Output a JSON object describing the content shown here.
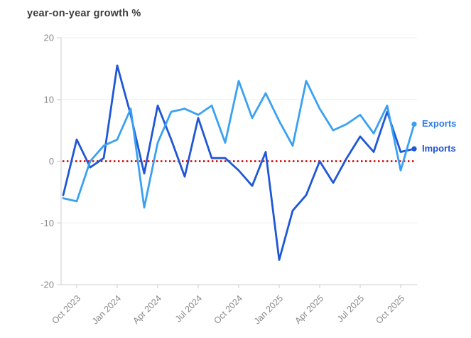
{
  "title": "year-on-year growth %",
  "legend": {
    "exports_label": "Exports",
    "imports_label": "Imports"
  },
  "colors": {
    "background": "#ffffff",
    "title": "#3d3d3d",
    "tick_label": "#898989",
    "gridline": "#ededed",
    "axis": "#cccccc",
    "zero_line": "#cc0000",
    "exports_label": "#2b7de8",
    "imports_label": "#1e51cf"
  },
  "chart_data": {
    "type": "line",
    "title": "year-on-year growth %",
    "ylabel": "year-on-year growth %",
    "ylim": [
      -20,
      20
    ],
    "yticks": [
      20,
      10,
      0,
      -10,
      -20
    ],
    "grid": true,
    "legend_position": "right-end",
    "x": [
      "Sep 2023",
      "Oct 2023",
      "Nov 2023",
      "Dec 2023",
      "Jan 2024",
      "Feb 2024",
      "Mar 2024",
      "Apr 2024",
      "May 2024",
      "Jun 2024",
      "Jul 2024",
      "Aug 2024",
      "Sep 2024",
      "Oct 2024",
      "Nov 2024",
      "Dec 2024",
      "Jan 2025",
      "Feb 2025",
      "Mar 2025",
      "Apr 2025",
      "May 2025",
      "Jun 2025",
      "Jul 2025",
      "Aug 2025",
      "Sep 2025",
      "Oct 2025",
      "Nov 2025"
    ],
    "xticks": [
      "Oct 2023",
      "Jan 2024",
      "Apr 2024",
      "Jul 2024",
      "Oct 2024",
      "Jan 2025",
      "Apr 2025",
      "Jul 2025",
      "Oct 2025"
    ],
    "xtick_indices": [
      1,
      4,
      7,
      10,
      13,
      16,
      19,
      22,
      25
    ],
    "zero_line": {
      "value": 0,
      "color": "#cc0000",
      "style": "dotted"
    },
    "series": [
      {
        "name": "Exports",
        "color": "#3aa1f2",
        "values": [
          -6,
          -6.5,
          0,
          2.5,
          3.5,
          8.5,
          -7.5,
          3,
          8,
          8.5,
          7.5,
          9,
          3,
          13,
          7,
          11,
          6.5,
          2.5,
          13,
          8.5,
          5,
          6,
          7.5,
          4.5,
          9,
          -1.5,
          6
        ]
      },
      {
        "name": "Imports",
        "color": "#1f57d6",
        "values": [
          -5.5,
          3.5,
          -1,
          0.5,
          15.5,
          7.5,
          -2,
          9,
          3.5,
          -2.5,
          7,
          0.5,
          0.5,
          -1.5,
          -4,
          1.5,
          -16,
          -8,
          -5.5,
          0,
          -3.5,
          0.5,
          4,
          1.5,
          8,
          1.5,
          2
        ]
      }
    ]
  }
}
